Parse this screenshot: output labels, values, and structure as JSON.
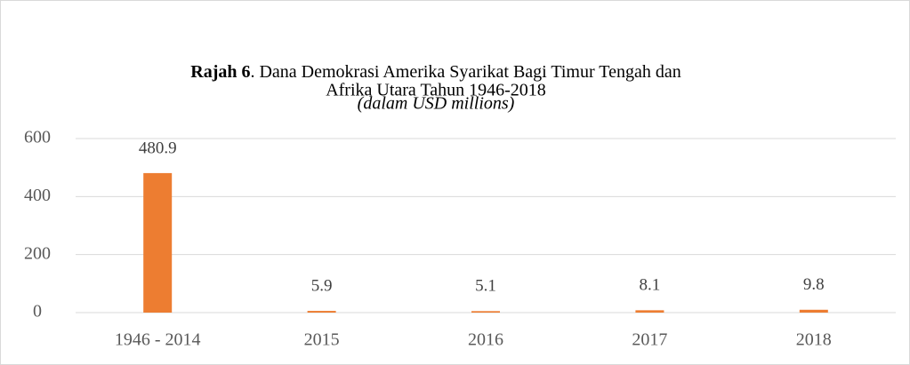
{
  "chart_data": {
    "type": "bar",
    "title": [
      "Rajah 6",
      ". Dana Demokrasi Amerika Syarikat Bagi Timur Tengah dan",
      "Afrika Utara Tahun 1946-2018"
    ],
    "subtitle": "(dalam USD millions)",
    "categories": [
      "1946 - 2014",
      "2015",
      "2016",
      "2017",
      "2018"
    ],
    "values": [
      480.9,
      5.9,
      5.1,
      8.1,
      9.8
    ],
    "color": "#ed7d31",
    "ylim": [
      0,
      600
    ],
    "yticks": [
      0,
      200,
      400,
      600
    ],
    "grid": true
  }
}
